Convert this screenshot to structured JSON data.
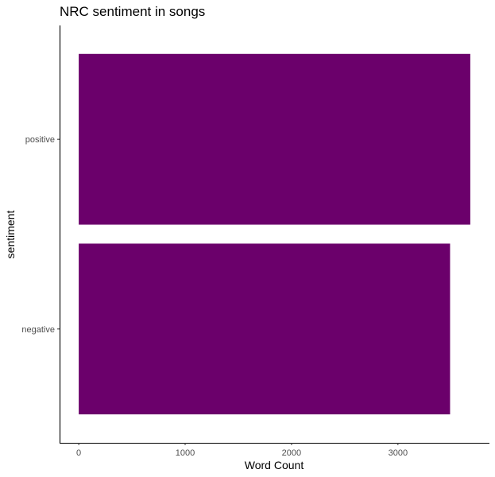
{
  "chart_data": {
    "type": "bar",
    "orientation": "horizontal",
    "title": "NRC sentiment in songs",
    "xlabel": "Word Count",
    "ylabel": "sentiment",
    "categories": [
      "negative",
      "positive"
    ],
    "values": [
      3490,
      3680
    ],
    "xlim": [
      -180,
      3860
    ],
    "xticks": [
      0,
      1000,
      2000,
      3000
    ],
    "xtick_labels": [
      "0",
      "1000",
      "2000",
      "3000"
    ],
    "bar_color": "#6b006b",
    "grid": false,
    "legend": "none"
  }
}
